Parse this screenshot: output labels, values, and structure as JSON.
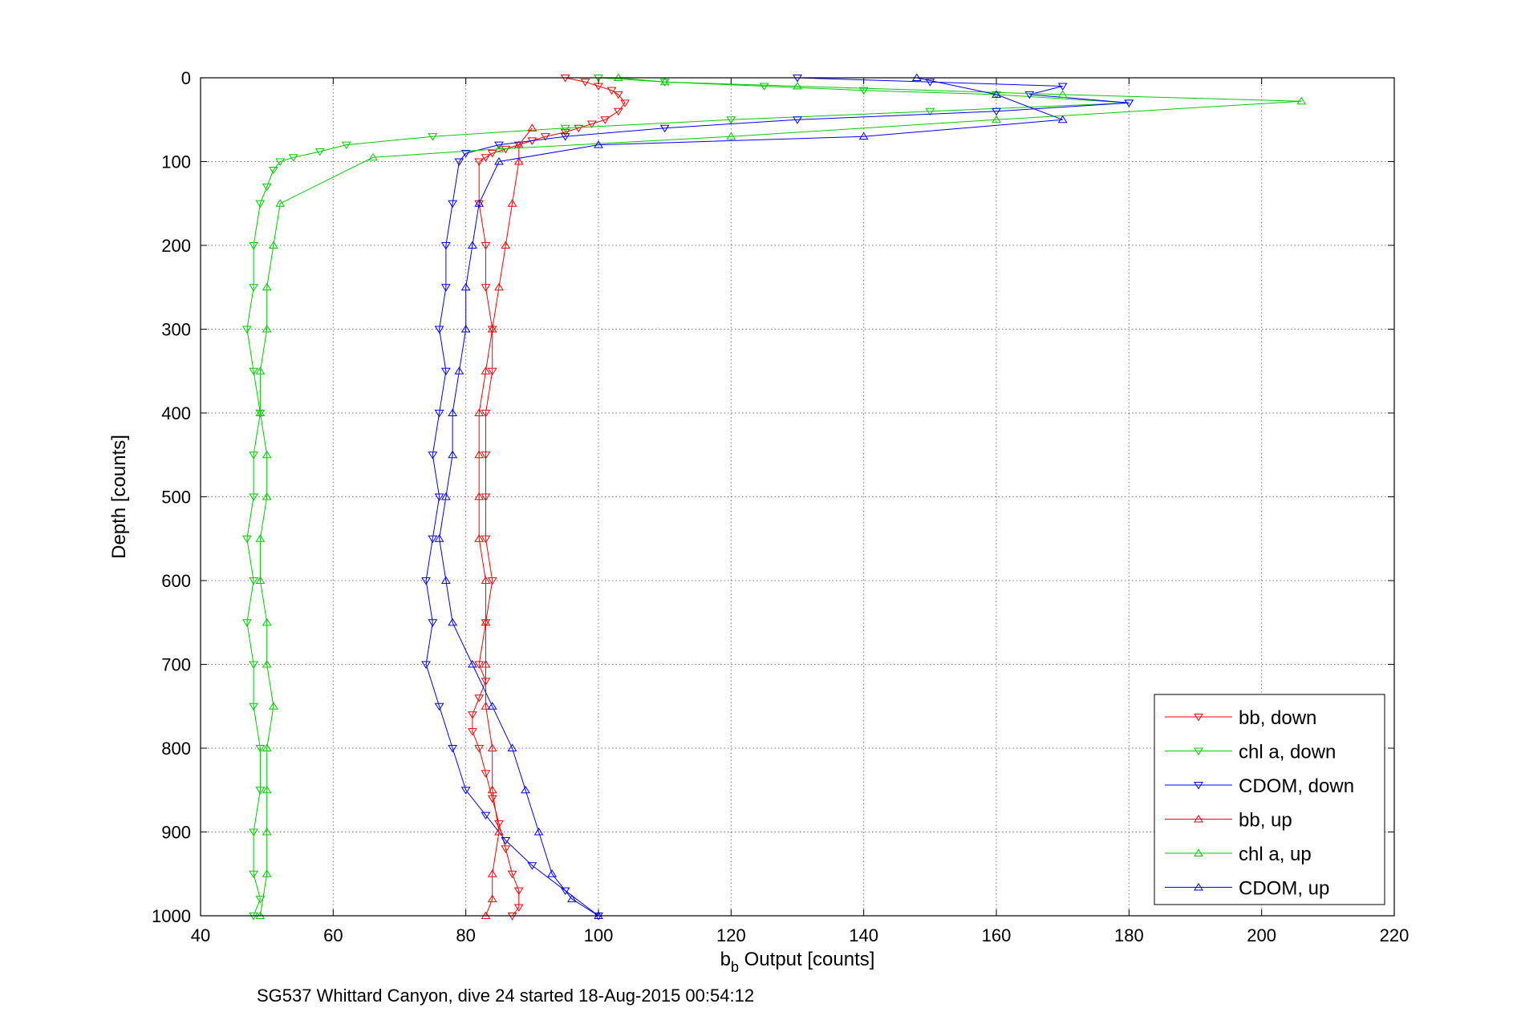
{
  "chart_data": {
    "type": "scatter",
    "xlabel_main": "b",
    "xlabel_sub": "b",
    "xlabel_rest": " Output [counts]",
    "ylabel": "Depth [counts]",
    "caption": "SG537 Whittard Canyon, dive 24 started 18-Aug-2015 00:54:12",
    "xlim": [
      40,
      220
    ],
    "ylim": [
      0,
      1000
    ],
    "y_reversed": true,
    "grid": true,
    "legend_position": "bottom-right",
    "xticks": [
      40,
      60,
      80,
      100,
      120,
      140,
      160,
      180,
      200,
      220
    ],
    "yticks": [
      0,
      100,
      200,
      300,
      400,
      500,
      600,
      700,
      800,
      900,
      1000
    ],
    "series": [
      {
        "name": "bb, down",
        "color": "#ff0000",
        "marker": "triangle-down",
        "x": [
          95,
          98,
          100,
          102,
          103,
          104,
          103,
          101,
          99,
          97,
          95,
          92,
          90,
          88,
          86,
          84,
          83,
          82,
          82,
          83,
          83,
          84,
          84,
          83,
          83,
          83,
          83,
          84,
          83,
          82,
          83,
          82,
          81,
          81,
          82,
          83,
          84,
          85,
          86,
          87,
          88,
          88,
          87
        ],
        "y": [
          0,
          5,
          10,
          15,
          20,
          30,
          40,
          50,
          55,
          60,
          65,
          70,
          75,
          80,
          85,
          90,
          95,
          100,
          150,
          200,
          250,
          300,
          350,
          400,
          450,
          500,
          550,
          600,
          650,
          700,
          720,
          740,
          760,
          780,
          800,
          830,
          860,
          890,
          920,
          950,
          970,
          990,
          1000
        ]
      },
      {
        "name": "chl a, down",
        "color": "#00cc00",
        "marker": "triangle-down",
        "x": [
          100,
          110,
          125,
          140,
          160,
          180,
          150,
          120,
          95,
          75,
          62,
          58,
          54,
          52,
          51,
          50,
          49,
          48,
          48,
          47,
          48,
          49,
          48,
          48,
          47,
          48,
          47,
          48,
          48,
          49,
          49,
          48,
          48,
          49,
          48
        ],
        "y": [
          0,
          5,
          10,
          15,
          20,
          30,
          40,
          50,
          60,
          70,
          80,
          88,
          95,
          100,
          110,
          130,
          150,
          200,
          250,
          300,
          350,
          400,
          450,
          500,
          550,
          600,
          650,
          700,
          750,
          800,
          850,
          900,
          950,
          980,
          1000
        ]
      },
      {
        "name": "CDOM, down",
        "color": "#0000ff",
        "marker": "triangle-down",
        "x": [
          130,
          150,
          170,
          165,
          180,
          160,
          130,
          110,
          95,
          85,
          80,
          79,
          78,
          77,
          77,
          76,
          77,
          76,
          75,
          76,
          75,
          74,
          75,
          74,
          76,
          78,
          80,
          83,
          86,
          90,
          95,
          100
        ],
        "y": [
          0,
          5,
          10,
          20,
          30,
          40,
          50,
          60,
          70,
          80,
          90,
          100,
          150,
          200,
          250,
          300,
          350,
          400,
          450,
          500,
          550,
          600,
          650,
          700,
          750,
          800,
          850,
          880,
          910,
          940,
          970,
          1000
        ]
      },
      {
        "name": "bb, up",
        "color": "#ff0000",
        "marker": "triangle-up",
        "x": [
          83,
          84,
          84,
          85,
          84,
          84,
          83,
          83,
          83,
          83,
          82,
          82,
          82,
          82,
          83,
          84,
          85,
          86,
          87,
          88,
          88,
          90
        ],
        "y": [
          1000,
          980,
          950,
          900,
          850,
          800,
          750,
          700,
          650,
          600,
          550,
          500,
          450,
          400,
          350,
          300,
          250,
          200,
          150,
          100,
          80,
          60
        ]
      },
      {
        "name": "chl a, up",
        "color": "#00cc00",
        "marker": "triangle-up",
        "x": [
          49,
          50,
          50,
          50,
          50,
          51,
          50,
          50,
          49,
          49,
          50,
          50,
          49,
          49,
          50,
          50,
          51,
          52,
          66,
          85,
          120,
          160,
          206,
          170,
          130,
          110,
          103
        ],
        "y": [
          1000,
          950,
          900,
          850,
          800,
          750,
          700,
          650,
          600,
          550,
          500,
          450,
          400,
          350,
          300,
          250,
          200,
          150,
          95,
          85,
          70,
          50,
          28,
          20,
          10,
          5,
          0
        ]
      },
      {
        "name": "CDOM, up",
        "color": "#0000ff",
        "marker": "triangle-up",
        "x": [
          100,
          96,
          93,
          91,
          89,
          87,
          84,
          81,
          78,
          77,
          76,
          77,
          78,
          78,
          79,
          80,
          80,
          81,
          82,
          85,
          100,
          140,
          170,
          160,
          148
        ],
        "y": [
          1000,
          980,
          950,
          900,
          850,
          800,
          750,
          700,
          650,
          600,
          550,
          500,
          450,
          400,
          350,
          300,
          250,
          200,
          150,
          100,
          80,
          70,
          50,
          20,
          0
        ]
      }
    ]
  }
}
